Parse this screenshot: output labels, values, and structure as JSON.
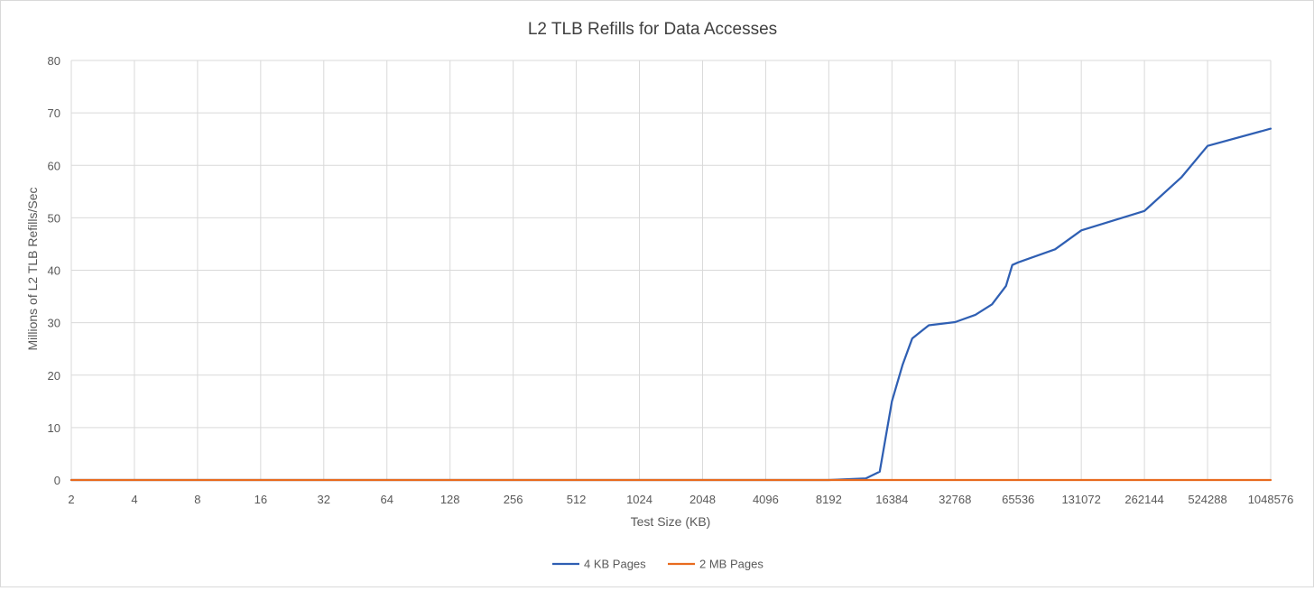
{
  "chart_data": {
    "type": "line",
    "title": "L2 TLB Refills for Data Accesses",
    "xlabel": "Test Size (KB)",
    "ylabel": "Millions of L2 TLB Refills/Sec",
    "x_scale": "log2",
    "x_ticks": [
      2,
      4,
      8,
      16,
      32,
      64,
      128,
      256,
      512,
      1024,
      2048,
      4096,
      8192,
      16384,
      32768,
      65536,
      131072,
      262144,
      524288,
      1048576
    ],
    "x_tick_labels": [
      "2",
      "4",
      "8",
      "16",
      "32",
      "64",
      "128",
      "256",
      "512",
      "1024",
      "2048",
      "4096",
      "8192",
      "16384",
      "32768",
      "65536",
      "131072",
      "262144",
      "524288",
      "1048576"
    ],
    "y_ticks": [
      0,
      10,
      20,
      30,
      40,
      50,
      60,
      70,
      80
    ],
    "ylim": [
      0,
      80
    ],
    "xlim": [
      2,
      1048576
    ],
    "grid": true,
    "legend_position": "bottom",
    "series": [
      {
        "name": "4 KB Pages",
        "color": "#2f5fb3",
        "x": [
          2,
          3,
          4,
          6,
          8,
          12,
          16,
          32,
          64,
          128,
          256,
          512,
          1024,
          2048,
          4096,
          8192,
          12288,
          14336,
          16384,
          18432,
          20480,
          24576,
          32768,
          40960,
          49152,
          57344,
          61440,
          65536,
          98304,
          131072,
          262144,
          393216,
          524288,
          1048576
        ],
        "y": [
          0,
          0,
          0,
          0,
          0,
          0,
          0,
          0,
          0,
          0,
          0,
          0,
          0,
          0,
          0,
          0,
          0.3,
          1.6,
          15,
          22,
          27,
          29.5,
          30.1,
          31.5,
          33.5,
          37,
          41,
          41.5,
          44,
          47.6,
          51.3,
          57.7,
          63.7,
          67
        ]
      },
      {
        "name": "2 MB Pages",
        "color": "#e86b1f",
        "x": [
          2,
          1048576
        ],
        "y": [
          0,
          0
        ]
      }
    ]
  }
}
